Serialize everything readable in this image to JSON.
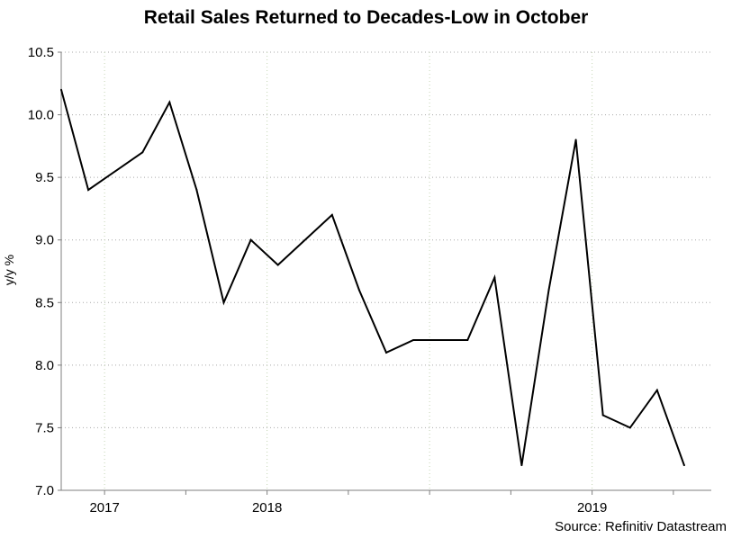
{
  "chart_data": {
    "type": "line",
    "title": "Retail Sales Returned to Decades-Low in October",
    "ylabel": "y/y %",
    "xlabel": "",
    "source": "Source: Refinitiv Datastream",
    "ylim": [
      7.0,
      10.5
    ],
    "yticks": [
      "7.0",
      "7.5",
      "8.0",
      "8.5",
      "9.0",
      "9.5",
      "10.0",
      "10.5"
    ],
    "xlim": [
      0,
      24
    ],
    "xticks": [
      {
        "label": "2017",
        "pos": 1.6
      },
      {
        "label": "2018",
        "pos": 7.6
      },
      {
        "label": "2019",
        "pos": 19.6
      }
    ],
    "xtick_marks": [
      1.6,
      4.6,
      7.6,
      10.6,
      13.6,
      16.6,
      19.6,
      22.6
    ],
    "x_gridlines": [
      1.6,
      7.6,
      13.6,
      19.6
    ],
    "series": [
      {
        "name": "Retail Sales y/y %",
        "x": [
          0,
          1,
          3,
          4,
          5,
          6,
          7,
          8,
          10,
          11,
          12,
          13,
          15,
          16,
          17,
          18,
          19,
          20,
          21,
          22,
          23
        ],
        "values": [
          10.2,
          9.4,
          9.7,
          10.1,
          9.4,
          8.5,
          9.0,
          8.8,
          9.2,
          8.6,
          8.1,
          8.2,
          8.2,
          8.7,
          7.2,
          8.6,
          9.8,
          7.6,
          7.5,
          7.8,
          7.2
        ]
      }
    ],
    "grid": true
  }
}
